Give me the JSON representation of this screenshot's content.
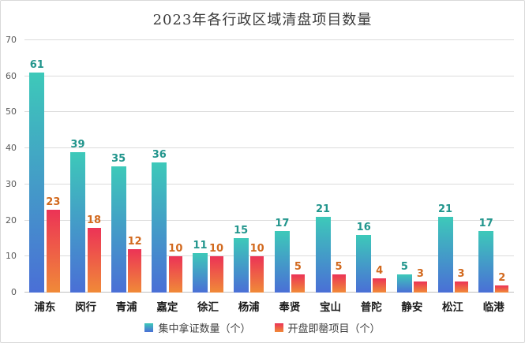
{
  "title": "2023年各行政区域清盘项目数量",
  "chart_data": {
    "type": "bar",
    "title": "2023年各行政区域清盘项目数量",
    "categories": [
      "浦东",
      "闵行",
      "青浦",
      "嘉定",
      "徐汇",
      "杨浦",
      "奉贤",
      "宝山",
      "普陀",
      "静安",
      "松江",
      "临港"
    ],
    "series": [
      {
        "name": "集中拿证数量（个）",
        "values": [
          61,
          39,
          35,
          36,
          11,
          15,
          17,
          21,
          16,
          5,
          21,
          17
        ]
      },
      {
        "name": "开盘即罄项目（个）",
        "values": [
          23,
          18,
          12,
          10,
          10,
          10,
          5,
          5,
          4,
          3,
          3,
          2
        ]
      }
    ],
    "xlabel": "",
    "ylabel": "",
    "ylim": [
      0,
      70
    ],
    "yticks": [
      0,
      10,
      20,
      30,
      40,
      50,
      60,
      70
    ],
    "grid": true,
    "legend_position": "bottom"
  },
  "style": {
    "series_colors": [
      {
        "top": "#3DC9B9",
        "bottom": "#4A6FD6",
        "label": "#21958C"
      },
      {
        "top": "#EC3356",
        "bottom": "#F08A38",
        "label": "#D2691E"
      }
    ],
    "grid_color": "#DCDCDC",
    "axis_color": "#BFBFBF",
    "tick_color": "#595959",
    "category_color": "#1A1A1A",
    "title_color": "#3A3A3A",
    "legend_text_color": "#3F3F3F",
    "border_color": "#D9D9D9",
    "background": "#FFFFFF"
  }
}
